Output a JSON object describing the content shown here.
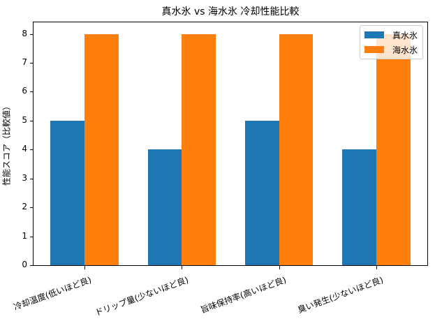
{
  "chart_data": {
    "type": "bar",
    "title": "真水氷 vs 海水氷 冷却性能比較",
    "xlabel": "",
    "ylabel": "性能スコア（比較値）",
    "categories": [
      "冷却温度(低いほど良)",
      "ドリップ量(少ないほど良)",
      "旨味保持率(高いほど良)",
      "臭い発生(少ないほど良)"
    ],
    "series": [
      {
        "name": "真水氷",
        "color": "#1f77b4",
        "values": [
          5,
          4,
          5,
          4
        ]
      },
      {
        "name": "海水氷",
        "color": "#ff7f0e",
        "values": [
          8,
          8,
          8,
          8
        ]
      }
    ],
    "ylim": [
      0,
      8.4
    ],
    "yticks": [
      0,
      1,
      2,
      3,
      4,
      5,
      6,
      7,
      8
    ],
    "grid": false,
    "legend_position": "upper right"
  }
}
